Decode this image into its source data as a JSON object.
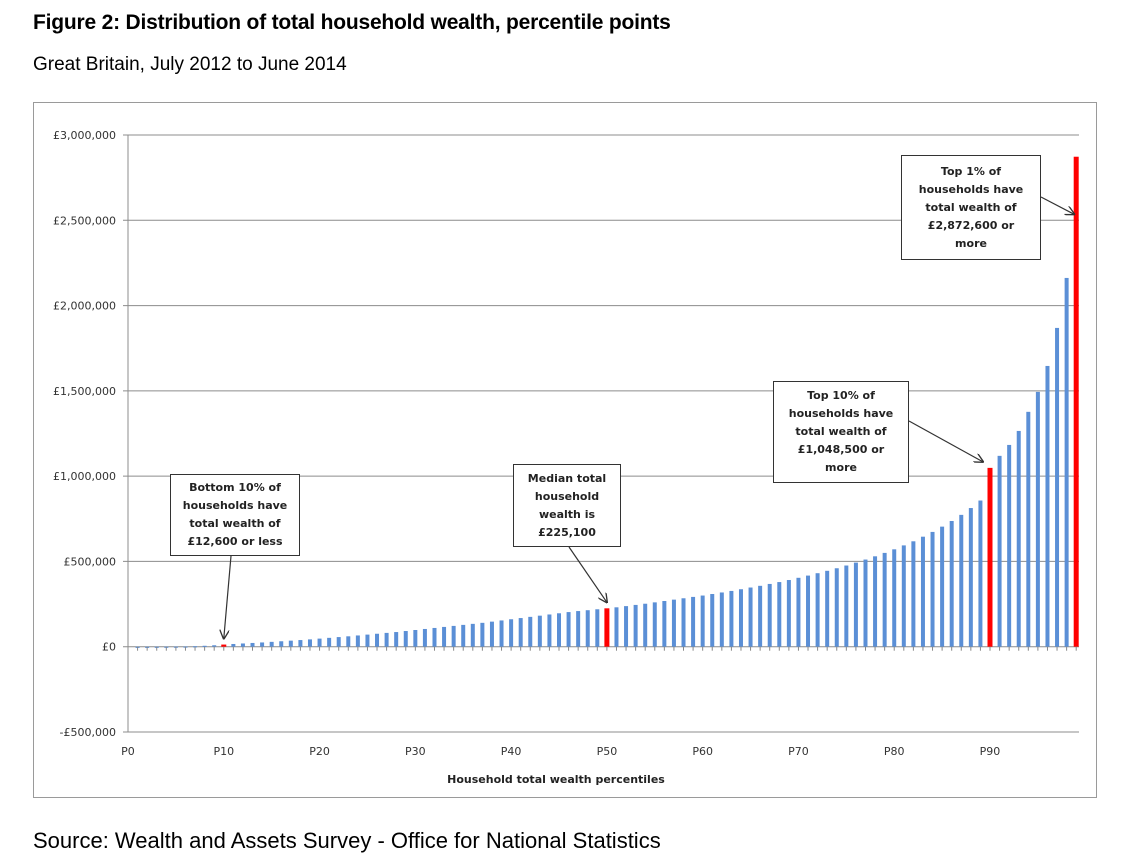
{
  "header": {
    "title": "Figure 2: Distribution of total household wealth, percentile points",
    "subtitle": "Great Britain, July 2012 to June 2014"
  },
  "footer": {
    "source": "Source: Wealth and Assets Survey - Office for National Statistics"
  },
  "colors": {
    "bar": "#5b8fd6",
    "highlight": "#ff0000",
    "gridline": "#8c8c8c"
  },
  "chart_data": {
    "type": "bar",
    "title": "Figure 2: Distribution of total household wealth, percentile points",
    "subtitle": "Great Britain, July 2012 to June 2014",
    "xlabel": "Household total wealth percentiles",
    "ylabel": "",
    "ylim": [
      -500000,
      3000000
    ],
    "yticks": [
      -500000,
      0,
      500000,
      1000000,
      1500000,
      2000000,
      2500000,
      3000000
    ],
    "ytick_labels": [
      "-£500,000",
      "£0",
      "£500,000",
      "£1,000,000",
      "£1,500,000",
      "£2,000,000",
      "£2,500,000",
      "£3,000,000"
    ],
    "xtick_labels": [
      "P0",
      "P10",
      "P20",
      "P30",
      "P40",
      "P50",
      "P60",
      "P70",
      "P80",
      "P90"
    ],
    "xtick_positions": [
      0,
      10,
      20,
      30,
      40,
      50,
      60,
      70,
      80,
      90
    ],
    "grid": true,
    "legend": "none",
    "categories": [
      "P1",
      "P2",
      "P3",
      "P4",
      "P5",
      "P6",
      "P7",
      "P8",
      "P9",
      "P10",
      "P11",
      "P12",
      "P13",
      "P14",
      "P15",
      "P16",
      "P17",
      "P18",
      "P19",
      "P20",
      "P21",
      "P22",
      "P23",
      "P24",
      "P25",
      "P26",
      "P27",
      "P28",
      "P29",
      "P30",
      "P31",
      "P32",
      "P33",
      "P34",
      "P35",
      "P36",
      "P37",
      "P38",
      "P39",
      "P40",
      "P41",
      "P42",
      "P43",
      "P44",
      "P45",
      "P46",
      "P47",
      "P48",
      "P49",
      "P50",
      "P51",
      "P52",
      "P53",
      "P54",
      "P55",
      "P56",
      "P57",
      "P58",
      "P59",
      "P60",
      "P61",
      "P62",
      "P63",
      "P64",
      "P65",
      "P66",
      "P67",
      "P68",
      "P69",
      "P70",
      "P71",
      "P72",
      "P73",
      "P74",
      "P75",
      "P76",
      "P77",
      "P78",
      "P79",
      "P80",
      "P81",
      "P82",
      "P83",
      "P84",
      "P85",
      "P86",
      "P87",
      "P88",
      "P89",
      "P90",
      "P91",
      "P92",
      "P93",
      "P94",
      "P95",
      "P96",
      "P97",
      "P98",
      "P99"
    ],
    "values": [
      -4000,
      0,
      200,
      500,
      900,
      1500,
      3000,
      5500,
      8500,
      12600,
      16000,
      19000,
      22000,
      25000,
      28500,
      32000,
      35500,
      39000,
      43000,
      47500,
      52000,
      56500,
      61000,
      66000,
      71000,
      76000,
      81000,
      86000,
      92000,
      98000,
      104000,
      110000,
      116000,
      122000,
      128000,
      134000,
      140000,
      147000,
      154000,
      161000,
      168000,
      175000,
      182000,
      189000,
      196000,
      203000,
      209000,
      214000,
      219500,
      225100,
      231000,
      238000,
      245000,
      252000,
      260000,
      268000,
      276000,
      284000,
      292000,
      300000,
      309000,
      318000,
      327000,
      337000,
      347000,
      357000,
      368000,
      379000,
      391000,
      404000,
      417000,
      431000,
      445000,
      460000,
      476000,
      493000,
      511000,
      530000,
      550000,
      571000,
      594000,
      618000,
      645000,
      673000,
      704000,
      737000,
      773000,
      813000,
      857000,
      1048500,
      1119000,
      1183000,
      1265000,
      1377000,
      1494000,
      1646000,
      1869000,
      2162000,
      2872600
    ],
    "highlighted": [
      "P10",
      "P50",
      "P90",
      "P99"
    ],
    "annotations": [
      {
        "id": "bottom10",
        "target": "P10",
        "text": "Bottom 10% of\nhouseholds have\ntotal wealth of\n£12,600 or less"
      },
      {
        "id": "median",
        "target": "P50",
        "text": "Median total\nhousehold\nwealth is\n£225,100"
      },
      {
        "id": "top10",
        "target": "P90",
        "text": "Top 10% of\nhouseholds have\ntotal wealth of\n£1,048,500 or\nmore"
      },
      {
        "id": "top1",
        "target": "P99",
        "text": "Top 1% of\nhouseholds have\ntotal wealth of\n£2,872,600 or\nmore"
      }
    ]
  }
}
